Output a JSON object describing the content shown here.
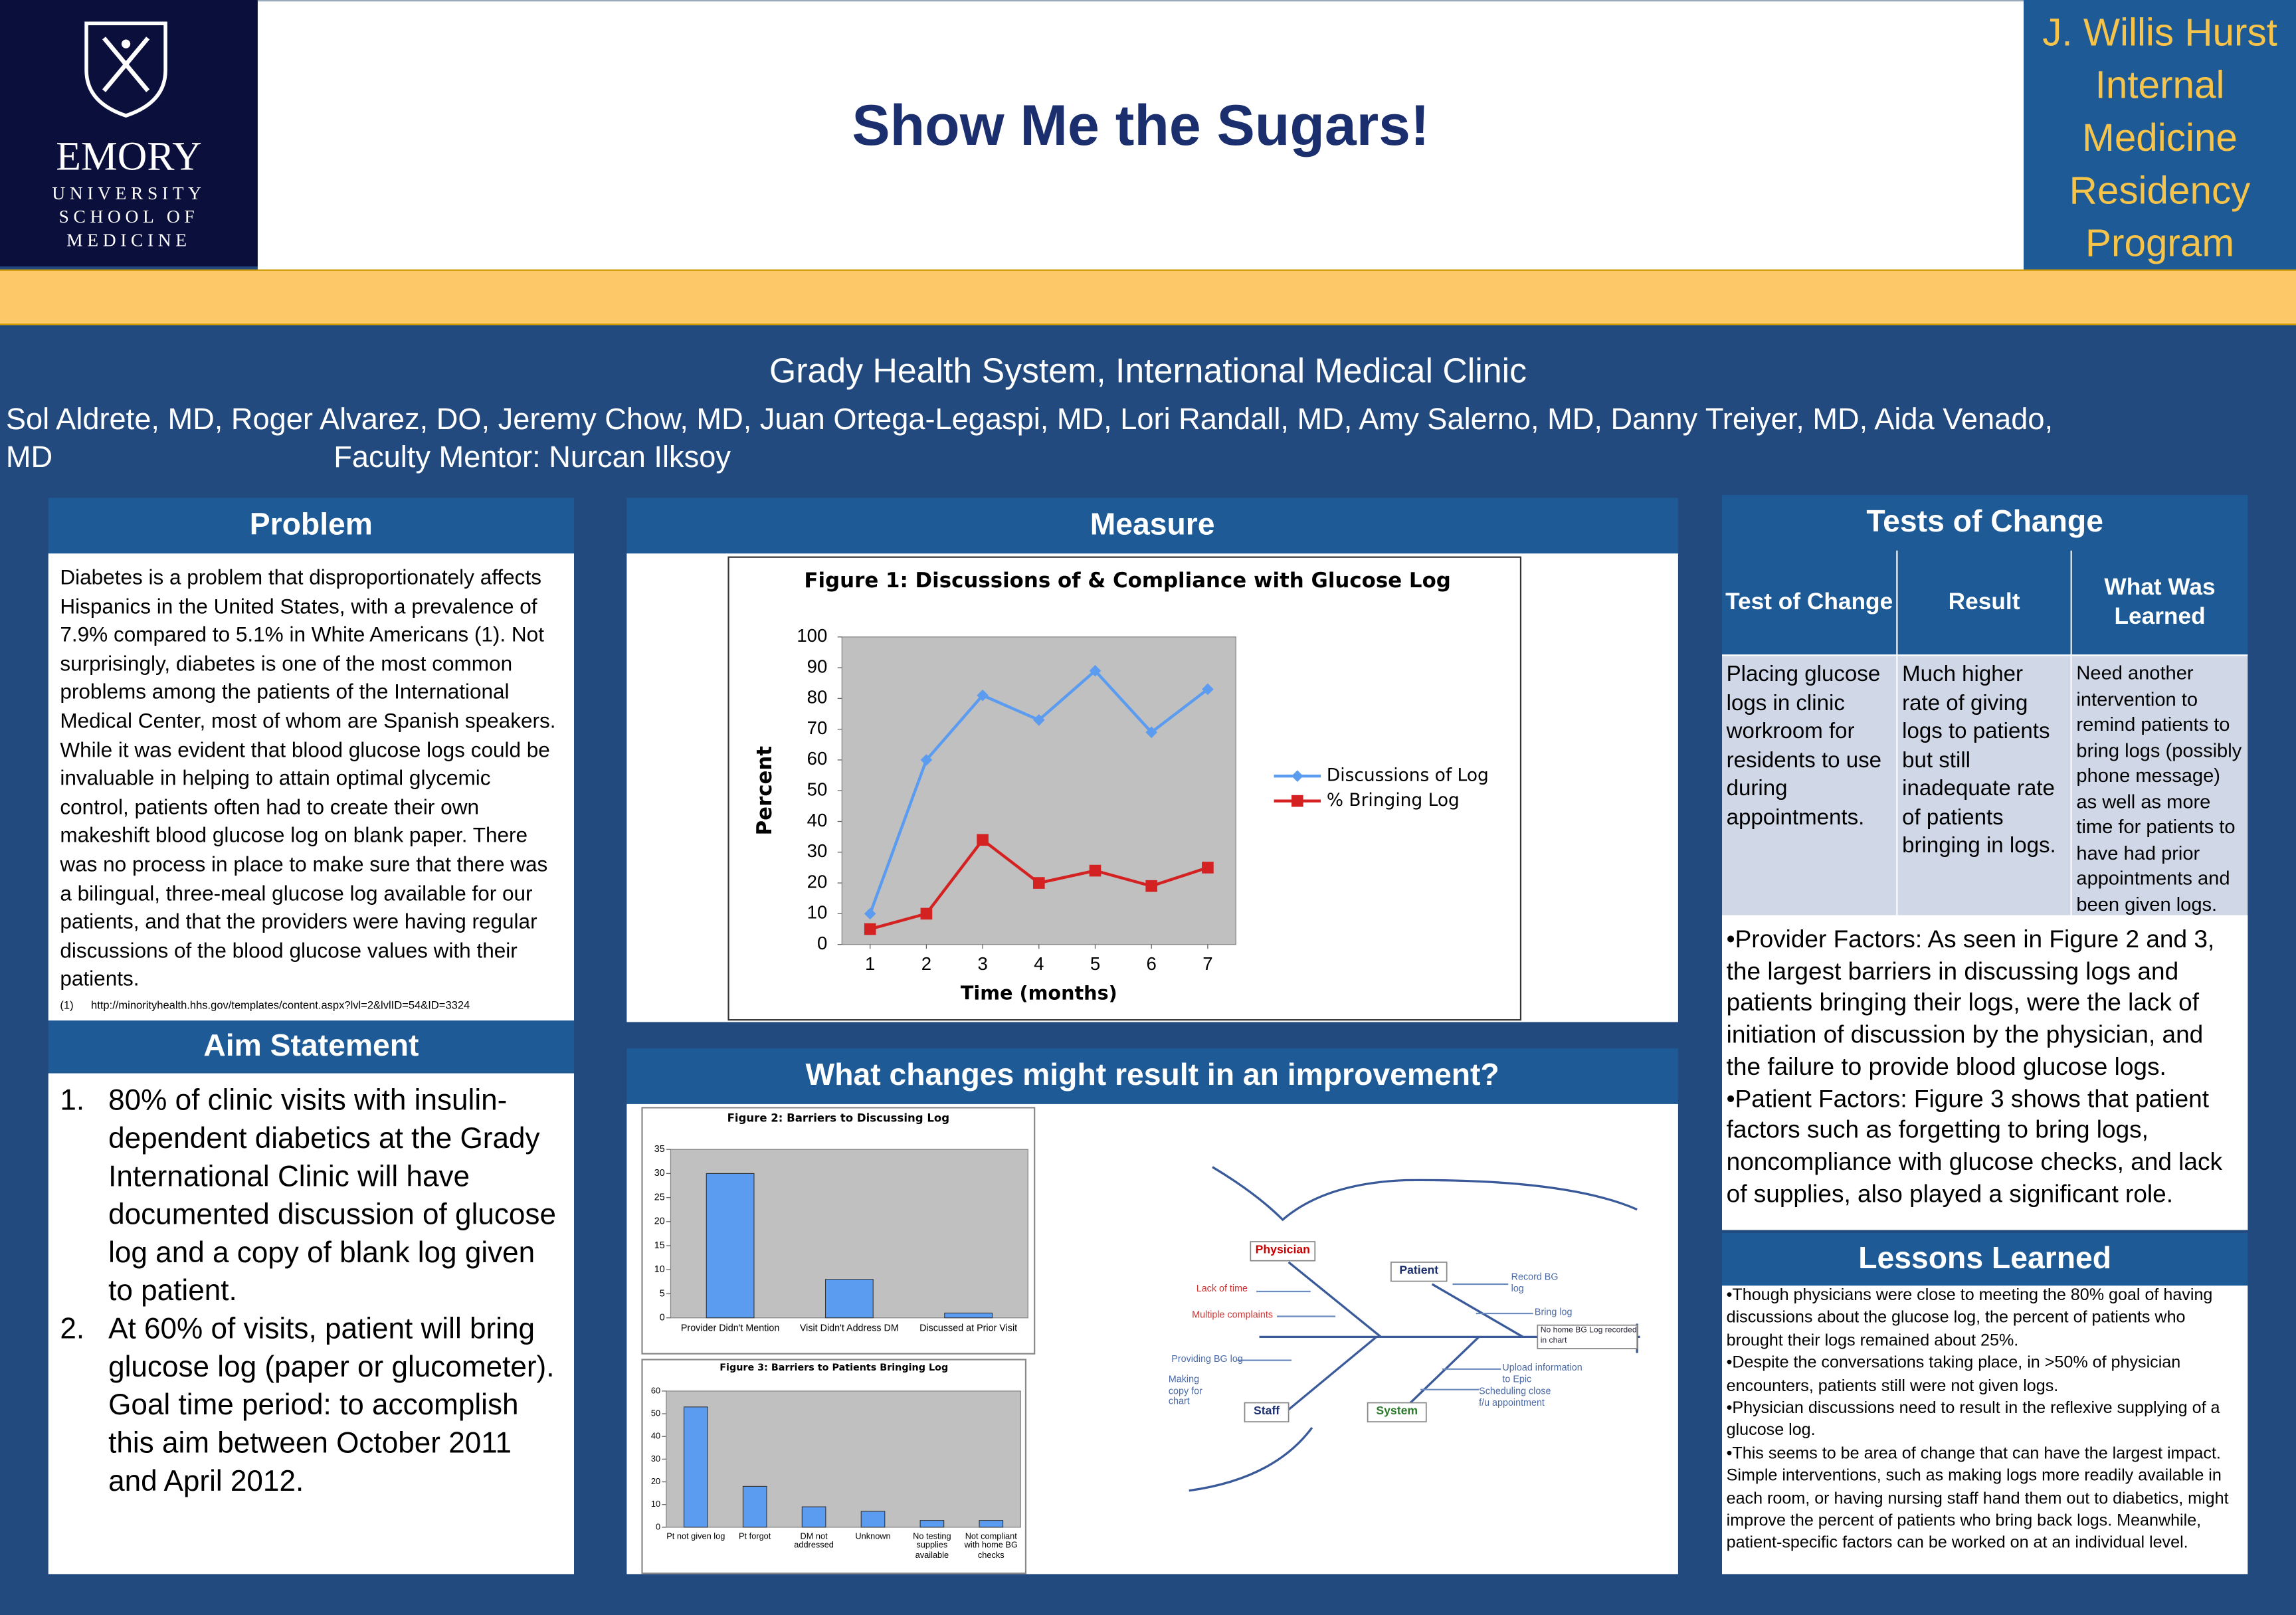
{
  "header": {
    "logo": {
      "name": "EMORY",
      "lines": [
        "UNIVERSITY",
        "SCHOOL OF",
        "MEDICINE"
      ]
    },
    "title": "Show Me the Sugars!",
    "program": "J. Willis Hurst Internal Medicine Residency Program"
  },
  "affiliation": "Grady Health System,  International Medical Clinic",
  "authors": "Sol Aldrete, MD, Roger Alvarez, DO, Jeremy Chow, MD, Juan Ortega-Legaspi, MD, Lori Randall, MD, Amy Salerno, MD, Danny Treiyer, MD, Aida Venado, MD",
  "mentor": "Faculty Mentor: Nurcan Ilksoy",
  "problem": {
    "title": "Problem",
    "text": "Diabetes is a problem that disproportionately affects Hispanics in the United States, with a prevalence of 7.9% compared to 5.1% in White Americans (1).  Not surprisingly, diabetes is one of the most common problems among the patients of the International Medical Center, most of whom are Spanish speakers.  While it was evident that blood glucose logs could be invaluable in helping to attain optimal glycemic control, patients often had to create their own makeshift blood glucose log on blank paper.  There was no process in place to make sure that there was a bilingual, three-meal glucose log available for our patients, and that the providers were having regular discussions of the blood glucose values with their patients.",
    "reference": {
      "label": "(1)",
      "url": "http://minorityhealth.hhs.gov/templates/content.aspx?lvl=2&lvlID=54&ID=3324"
    }
  },
  "aim": {
    "title": "Aim Statement",
    "items": [
      {
        "marker": "1.",
        "text": "80% of clinic visits with insulin-dependent diabetics at the Grady International Clinic will have documented discussion of glucose log and a copy of blank log given to patient."
      },
      {
        "marker": "2.",
        "text": "At 60% of visits, patient will bring glucose log (paper or glucometer). Goal time period: to accomplish this aim between October 2011 and April 2012."
      }
    ]
  },
  "measure": {
    "title": "Measure"
  },
  "changes": {
    "title": "What changes might result in an improvement?",
    "fishbone": {
      "categories": [
        "Physician",
        "Patient",
        "Staff",
        "System"
      ],
      "causes": [
        "Lack of time",
        "Multiple complaints",
        "Providing BG log",
        "Making copy for chart",
        "Record BG log",
        "Bring log",
        "No home BG Log recorded in chart",
        "Upload information to Epic",
        "Scheduling close f/u appointment"
      ]
    }
  },
  "tests": {
    "title": "Tests of Change",
    "table": {
      "headers": [
        "Test of Change",
        "Result",
        "What Was Learned"
      ],
      "rows": [
        [
          "Placing glucose logs in clinic workroom for residents to use during appointments.",
          "Much higher rate of giving logs to patients but still inadequate rate of patients bringing in logs.",
          "Need another intervention to remind patients to bring logs (possibly phone message) as well as more time for patients to have had prior appointments and been given logs."
        ]
      ]
    },
    "factors": [
      "•Provider Factors:  As seen in Figure 2 and 3, the largest barriers in discussing logs and patients bringing their logs, were the lack of initiation of discussion by the physician, and the failure to provide blood glucose logs.",
      "•Patient Factors:  Figure 3 shows that patient factors such as forgetting to bring logs, noncompliance with glucose checks, and lack of supplies, also played a significant role."
    ]
  },
  "lessons": {
    "title": "Lessons Learned",
    "items": [
      "•Though physicians were close to meeting the 80% goal of having discussions about the glucose log, the percent of patients who brought their logs remained about 25%.",
      "•Despite the conversations taking place, in >50% of physician encounters, patients still were not given logs.",
      "•Physician discussions need to result in the reflexive supplying of a glucose log.",
      "•This seems to be area of change that can have the largest impact. Simple interventions, such as making logs more readily available in each room, or having nursing staff hand them out to diabetics, might improve the percent of patients who bring back logs. Meanwhile, patient-specific factors can be worked on at an individual level."
    ]
  },
  "chart_data": [
    {
      "type": "line",
      "title": "Figure 1: Discussions of & Compliance with Glucose Log",
      "x": [
        1,
        2,
        3,
        4,
        5,
        6,
        7
      ],
      "xlim": [
        0.5,
        7.5
      ],
      "xticks": [
        1,
        2,
        3,
        4,
        5,
        6,
        7
      ],
      "ylim": [
        0,
        100
      ],
      "yticks": [
        0,
        10,
        20,
        30,
        40,
        50,
        60,
        70,
        80,
        90,
        100
      ],
      "x_label": "Time (months)",
      "y_label": "Percent",
      "grid": false,
      "legend": "right",
      "series": [
        {
          "name": "Discussions of Log",
          "color": "#5b9cf0",
          "marker": "diamond",
          "values": [
            10,
            60,
            81,
            73,
            89,
            69,
            83
          ]
        },
        {
          "name": "% Bringing Log",
          "color": "#d42222",
          "marker": "square",
          "values": [
            5,
            10,
            34,
            20,
            24,
            19,
            25
          ]
        }
      ]
    },
    {
      "type": "bar",
      "title": "Figure 2: Barriers to Discussing Log",
      "categories": [
        "Provider Didn't Mention",
        "Visit Didn't Address DM",
        "Discussed at Prior Visit"
      ],
      "values": [
        30,
        8,
        1
      ],
      "color": "#5b9cf0",
      "ylim": [
        0,
        35
      ],
      "yticks": [
        0,
        5,
        10,
        15,
        20,
        25,
        30,
        35
      ],
      "grid": false
    },
    {
      "type": "bar",
      "title": "Figure 3: Barriers to Patients Bringing Log",
      "categories": [
        "Pt not given log",
        "Pt forgot",
        "DM not addressed",
        "Unknown",
        "No testing supplies available",
        "Not compliant with home BG checks"
      ],
      "values": [
        53,
        18,
        9,
        7,
        3,
        3
      ],
      "color": "#5b9cf0",
      "ylim": [
        0,
        60
      ],
      "yticks": [
        0,
        10,
        20,
        30,
        40,
        50,
        60
      ],
      "grid": false
    }
  ]
}
